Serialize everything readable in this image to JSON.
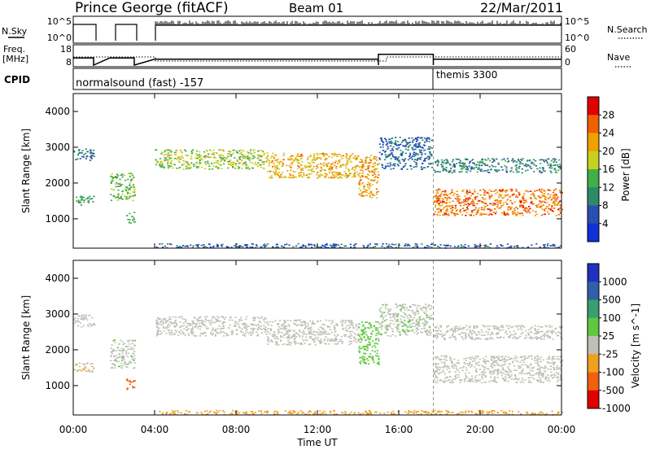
{
  "header": {
    "station": "Prince George (fitACF)",
    "beam": "Beam 01",
    "date": "22/Mar/2011"
  },
  "side_labels": {
    "nsky": "N.Sky",
    "freq_line1": "Freq.",
    "freq_line2": "[MHz]",
    "cpid": "CPID",
    "nsearch": "N.Search",
    "nave": "Nave"
  },
  "noise_panel": {
    "left_ticks": [
      "10^5",
      "10^0"
    ],
    "right_ticks": [
      "10^5",
      "10^0"
    ]
  },
  "freq_panel": {
    "left_ticks": [
      "18",
      "8"
    ],
    "right_ticks": [
      "60",
      "0"
    ]
  },
  "cpid_panel": {
    "segments": [
      {
        "label": "normalsound (fast) -157",
        "start_h": 0,
        "end_h": 17.7
      },
      {
        "label": "themis 3300",
        "start_h": 17.7,
        "end_h": 24
      }
    ]
  },
  "power_panel": {
    "ylabel": "Slant Range [km]",
    "yticks": [
      "4000",
      "3000",
      "2000",
      "1000"
    ],
    "colorbar_label": "Power [dB]",
    "colorbar_ticks": [
      "28",
      "24",
      "20",
      "16",
      "12",
      "8",
      "4"
    ],
    "colors": [
      "#1030d8",
      "#2850b0",
      "#2e8a68",
      "#40b048",
      "#c8d020",
      "#f0a000",
      "#f06000",
      "#e00000"
    ]
  },
  "velocity_panel": {
    "ylabel": "Slant Range [km]",
    "yticks": [
      "4000",
      "3000",
      "2000",
      "1000"
    ],
    "colorbar_label": "Velocity [m s^-1]",
    "colorbar_ticks": [
      "1000",
      "500",
      "100",
      "25",
      "-25",
      "-100",
      "-500",
      "-1000"
    ],
    "colors": [
      "#2030c0",
      "#3060a8",
      "#38a070",
      "#60c840",
      "#c0c0b8",
      "#f0a020",
      "#f06010",
      "#e00000"
    ]
  },
  "xaxis": {
    "label": "Time UT",
    "ticks": [
      "00:00",
      "04:00",
      "08:00",
      "12:00",
      "16:00",
      "20:00",
      "00:00"
    ]
  },
  "chart_data": {
    "type": "heatmap",
    "x_range_hours": [
      0,
      24
    ],
    "y_range_km": [
      180,
      4500
    ],
    "cpid_change_h": 17.7,
    "freq_mhz": [
      {
        "start_h": 0,
        "end_h": 1.0,
        "value": 12.0
      },
      {
        "start_h": 1.8,
        "end_h": 3.0,
        "value": 12.0
      },
      {
        "start_h": 4.0,
        "end_h": 15.0,
        "value": 11.3
      },
      {
        "start_h": 15.0,
        "end_h": 17.7,
        "value": 14.0
      },
      {
        "start_h": 17.7,
        "end_h": 24.0,
        "value": 11.3
      }
    ],
    "scatter_regions": [
      {
        "t0": 0.0,
        "t1": 1.0,
        "r0": 2650,
        "r1": 3000,
        "power": 8,
        "velocity": 0
      },
      {
        "t0": 0.0,
        "t1": 1.0,
        "r0": 1400,
        "r1": 1650,
        "power": 12,
        "velocity": -15
      },
      {
        "t0": 1.8,
        "t1": 3.0,
        "r0": 1500,
        "r1": 2300,
        "power": 15,
        "velocity": 10
      },
      {
        "t0": 2.6,
        "t1": 3.0,
        "r0": 900,
        "r1": 1200,
        "power": 12,
        "velocity": -200
      },
      {
        "t0": 4.0,
        "t1": 9.5,
        "r0": 2400,
        "r1": 2950,
        "power": 17,
        "velocity": 0
      },
      {
        "t0": 9.5,
        "t1": 14.0,
        "r0": 2150,
        "r1": 2850,
        "power": 21,
        "velocity": 0
      },
      {
        "t0": 14.0,
        "t1": 15.0,
        "r0": 1600,
        "r1": 2800,
        "power": 22,
        "velocity": 60
      },
      {
        "t0": 15.0,
        "t1": 17.6,
        "r0": 2400,
        "r1": 3300,
        "power": 7,
        "velocity": 15
      },
      {
        "t0": 17.7,
        "t1": 24.0,
        "r0": 1100,
        "r1": 1850,
        "power": 25,
        "velocity": 0
      },
      {
        "t0": 17.7,
        "t1": 24.0,
        "r0": 2300,
        "r1": 2700,
        "power": 10,
        "velocity": 0
      },
      {
        "t0": 4.0,
        "t1": 24.0,
        "r0": 200,
        "r1": 320,
        "power": 6,
        "velocity": -60
      }
    ]
  }
}
